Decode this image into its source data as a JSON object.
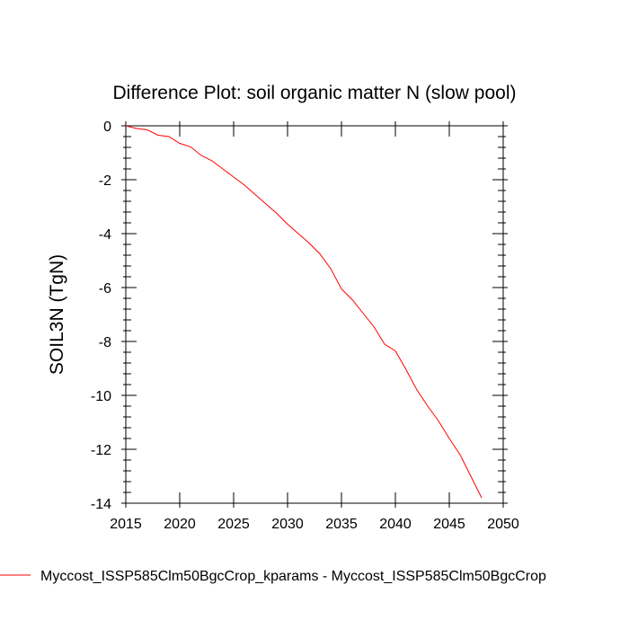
{
  "chart_data": {
    "type": "line",
    "title": "Difference Plot: soil organic matter N (slow pool)",
    "xlabel": "",
    "ylabel": "SOIL3N  (TgN)",
    "xlim": [
      2015,
      2050
    ],
    "ylim": [
      -14,
      0
    ],
    "x_ticks": [
      2015,
      2020,
      2025,
      2030,
      2035,
      2040,
      2045,
      2050
    ],
    "y_ticks": [
      0,
      -2,
      -4,
      -6,
      -8,
      -10,
      -12,
      -14
    ],
    "grid": false,
    "legend_position": "bottom",
    "series": [
      {
        "name": "Myccost_ISSP585Clm50BgcCrop_kparams - Myccost_ISSP585Clm50BgcCrop",
        "color": "#ff0000",
        "x": [
          2015,
          2016,
          2017,
          2018,
          2019,
          2020,
          2021,
          2022,
          2023,
          2024,
          2025,
          2026,
          2027,
          2028,
          2029,
          2030,
          2031,
          2032,
          2033,
          2034,
          2035,
          2036,
          2037,
          2038,
          2039,
          2040,
          2041,
          2042,
          2043,
          2044,
          2045,
          2046,
          2047,
          2048
        ],
        "y": [
          0,
          -0.1,
          -0.15,
          -0.35,
          -0.4,
          -0.65,
          -0.78,
          -1.1,
          -1.3,
          -1.6,
          -1.9,
          -2.2,
          -2.55,
          -2.9,
          -3.25,
          -3.65,
          -4.0,
          -4.35,
          -4.75,
          -5.3,
          -6.05,
          -6.45,
          -6.95,
          -7.45,
          -8.1,
          -8.35,
          -9.05,
          -9.8,
          -10.4,
          -10.95,
          -11.6,
          -12.2,
          -13.0,
          -13.8
        ]
      }
    ]
  }
}
